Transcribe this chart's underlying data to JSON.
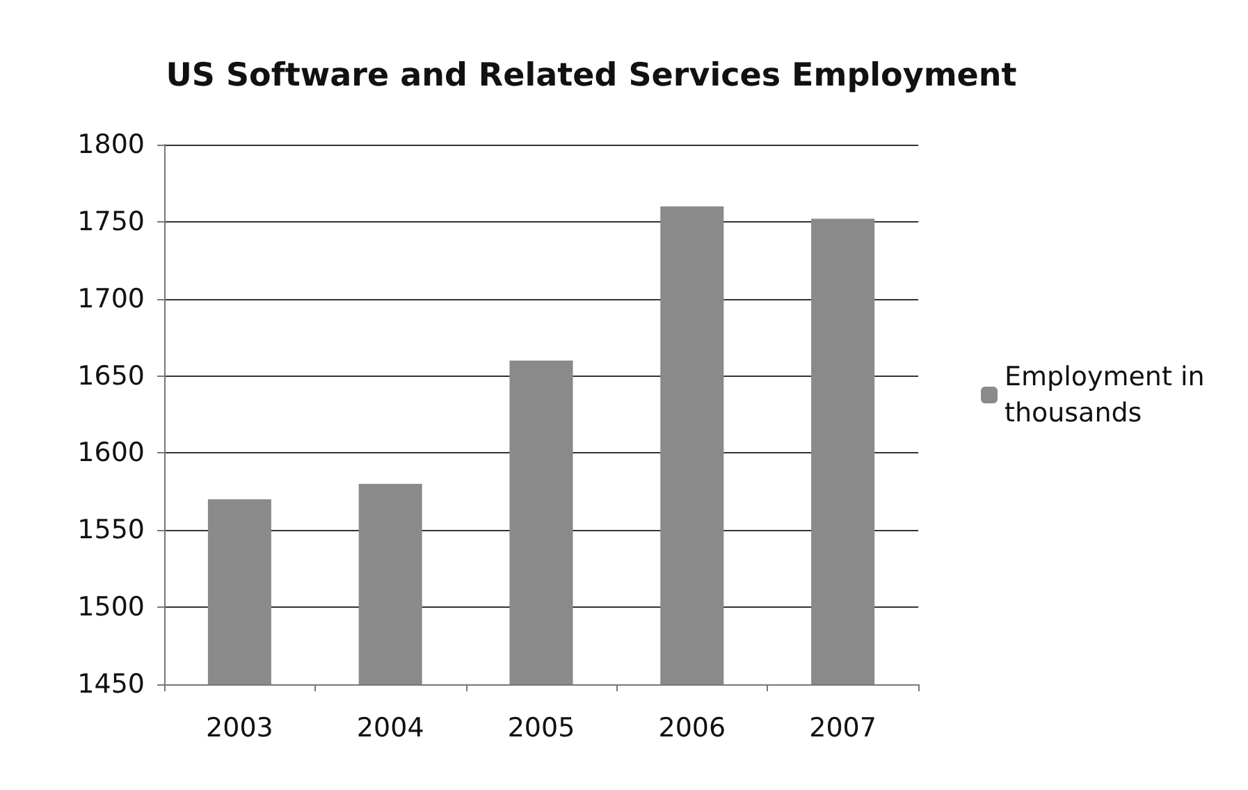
{
  "chart_data": {
    "type": "bar",
    "title": "US Software and Related Services Employment",
    "categories": [
      "2003",
      "2004",
      "2005",
      "2006",
      "2007"
    ],
    "series": [
      {
        "name": "Employment in thousands",
        "color": "#8a8a8a",
        "values": [
          1570,
          1580,
          1660,
          1760,
          1752
        ]
      }
    ],
    "ylim": [
      1450,
      1800
    ],
    "yticks": [
      1450,
      1500,
      1550,
      1600,
      1650,
      1700,
      1750,
      1800
    ],
    "grid": "y",
    "legend": "right"
  }
}
